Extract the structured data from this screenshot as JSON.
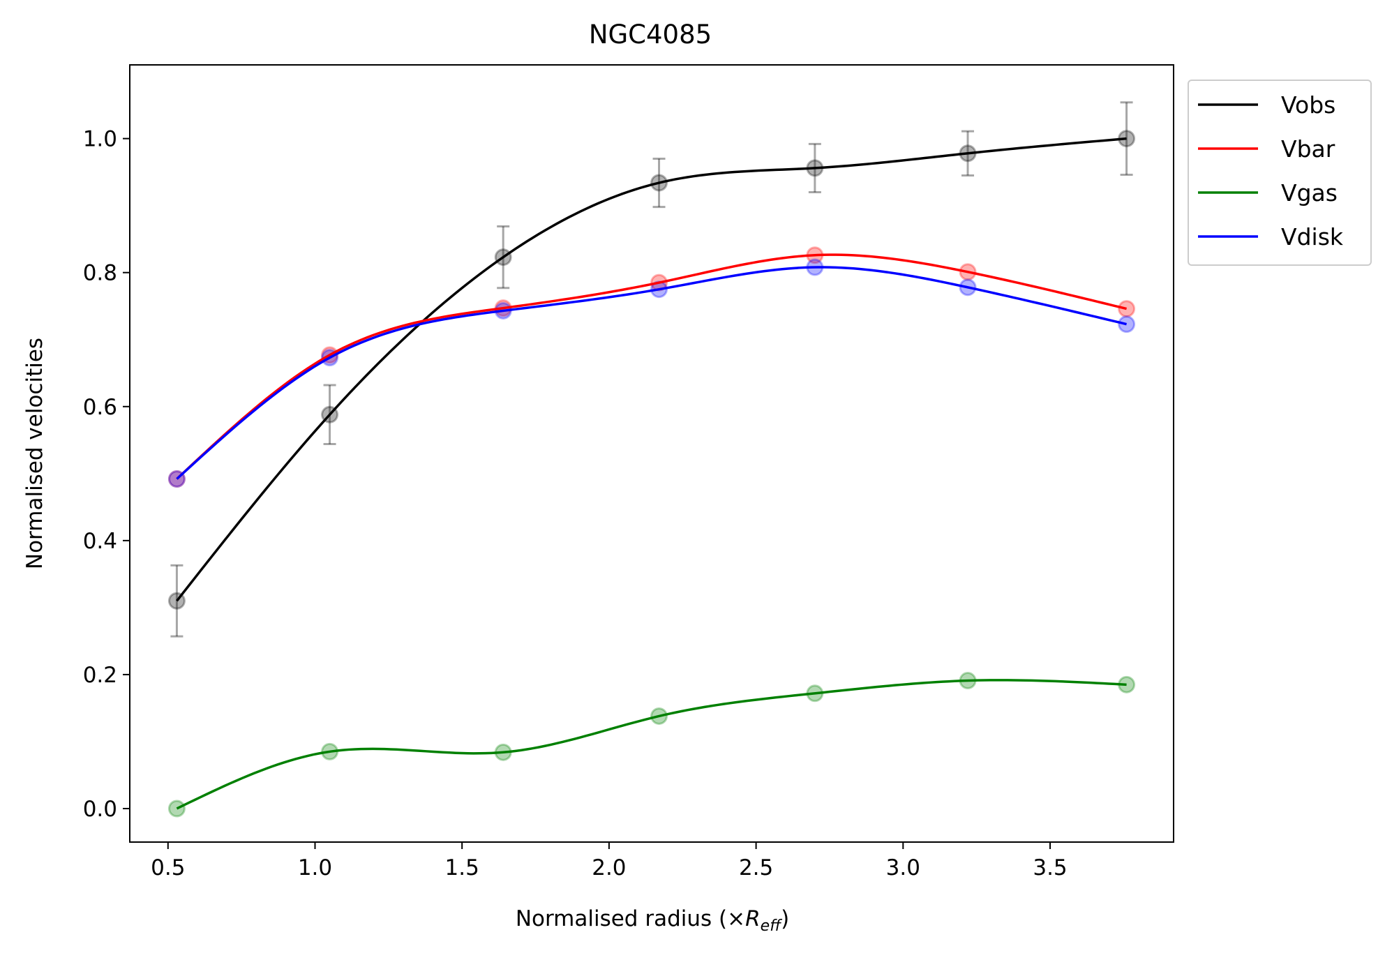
{
  "chart_data": {
    "type": "line",
    "title": "NGC4085",
    "xlabel_main": "Normalised radius (×",
    "xlabel_sym": "R",
    "xlabel_sub": "eff",
    "xlabel_close": ")",
    "ylabel": "Normalised velocities",
    "xlim": [
      0.37,
      3.92
    ],
    "ylim": [
      -0.05,
      1.11
    ],
    "xticks": [
      {
        "value": 0.5,
        "label": "0.5"
      },
      {
        "value": 1.0,
        "label": "1.0"
      },
      {
        "value": 1.5,
        "label": "1.5"
      },
      {
        "value": 2.0,
        "label": "2.0"
      },
      {
        "value": 2.5,
        "label": "2.5"
      },
      {
        "value": 3.0,
        "label": "3.0"
      },
      {
        "value": 3.5,
        "label": "3.5"
      }
    ],
    "yticks": [
      {
        "value": 0.0,
        "label": "0.0"
      },
      {
        "value": 0.2,
        "label": "0.2"
      },
      {
        "value": 0.4,
        "label": "0.4"
      },
      {
        "value": 0.6,
        "label": "0.6"
      },
      {
        "value": 0.8,
        "label": "0.8"
      },
      {
        "value": 1.0,
        "label": "1.0"
      }
    ],
    "grid": false,
    "legend_position": "outside-top-right",
    "x": [
      0.53,
      1.05,
      1.64,
      2.17,
      2.7,
      3.22,
      3.76
    ],
    "series": [
      {
        "name": "Vobs",
        "color": "#000000",
        "values": [
          0.31,
          0.588,
          0.823,
          0.934,
          0.956,
          0.978,
          1.0
        ],
        "errors": [
          0.053,
          0.044,
          0.046,
          0.036,
          0.036,
          0.033,
          0.054
        ]
      },
      {
        "name": "Vbar",
        "color": "#ff0000",
        "values": [
          0.492,
          0.677,
          0.747,
          0.785,
          0.826,
          0.801,
          0.746
        ]
      },
      {
        "name": "Vgas",
        "color": "#008000",
        "values": [
          0.0,
          0.085,
          0.084,
          0.138,
          0.172,
          0.191,
          0.185
        ]
      },
      {
        "name": "Vdisk",
        "color": "#0000ff",
        "values": [
          0.492,
          0.673,
          0.743,
          0.775,
          0.808,
          0.778,
          0.723
        ]
      }
    ]
  }
}
